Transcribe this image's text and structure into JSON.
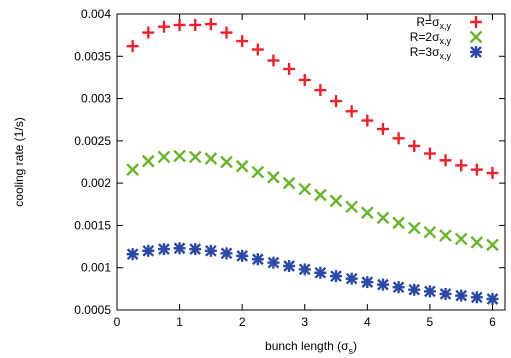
{
  "chart_data": {
    "type": "scatter",
    "xlabel": "bunch length (σ",
    "xlabel_sub": "s",
    "xlabel_close": ")",
    "ylabel": "cooling rate (1/s)",
    "xlim": [
      0,
      6.2
    ],
    "ylim": [
      0.0005,
      0.004
    ],
    "x_ticks": [
      0,
      1,
      2,
      3,
      4,
      5,
      6
    ],
    "x_tick_labels": [
      "0",
      "1",
      "2",
      "3",
      "4",
      "5",
      "6"
    ],
    "y_ticks": [
      0.0005,
      0.001,
      0.0015,
      0.002,
      0.0025,
      0.003,
      0.0035,
      0.004
    ],
    "y_tick_labels": [
      "0.0005",
      "0.001",
      "0.0015",
      "0.002",
      "0.0025",
      "0.003",
      "0.0035",
      "0.004"
    ],
    "grid": false,
    "legend_position": "top-right",
    "x": [
      0.25,
      0.5,
      0.75,
      1.0,
      1.25,
      1.5,
      1.75,
      2.0,
      2.25,
      2.5,
      2.75,
      3.0,
      3.25,
      3.5,
      3.75,
      4.0,
      4.25,
      4.5,
      4.75,
      5.0,
      5.25,
      5.5,
      5.75,
      6.0
    ],
    "series": [
      {
        "name": "R=σx,y",
        "legend": {
          "prefix": "R=",
          "sym": "σ",
          "sub": "x,y"
        },
        "marker": "plus",
        "color": "#e8232d",
        "values": [
          0.00362,
          0.00378,
          0.00385,
          0.00387,
          0.00387,
          0.00388,
          0.00378,
          0.00368,
          0.00358,
          0.00345,
          0.00335,
          0.00322,
          0.0031,
          0.00297,
          0.00285,
          0.00274,
          0.00264,
          0.00253,
          0.00244,
          0.00235,
          0.00227,
          0.00221,
          0.00216,
          0.00212
        ]
      },
      {
        "name": "R=2σx,y",
        "legend": {
          "prefix": "R=2",
          "sym": "σ",
          "sub": "x,y"
        },
        "marker": "x",
        "color": "#6ab42d",
        "values": [
          0.00216,
          0.00226,
          0.00231,
          0.00232,
          0.00231,
          0.00229,
          0.00225,
          0.0022,
          0.00213,
          0.00207,
          0.002,
          0.00193,
          0.00186,
          0.00179,
          0.00172,
          0.00165,
          0.00159,
          0.00153,
          0.00147,
          0.00142,
          0.00138,
          0.00134,
          0.0013,
          0.00127
        ]
      },
      {
        "name": "R=3σx,y",
        "legend": {
          "prefix": "R=3",
          "sym": "σ",
          "sub": "x,y"
        },
        "marker": "star",
        "color": "#2b49a6",
        "values": [
          0.00116,
          0.0012,
          0.00122,
          0.00123,
          0.00122,
          0.0012,
          0.00117,
          0.00114,
          0.0011,
          0.00106,
          0.00102,
          0.00098,
          0.00094,
          0.0009,
          0.00087,
          0.00083,
          0.0008,
          0.00077,
          0.00074,
          0.00072,
          0.00069,
          0.00067,
          0.00065,
          0.00063
        ]
      }
    ]
  }
}
